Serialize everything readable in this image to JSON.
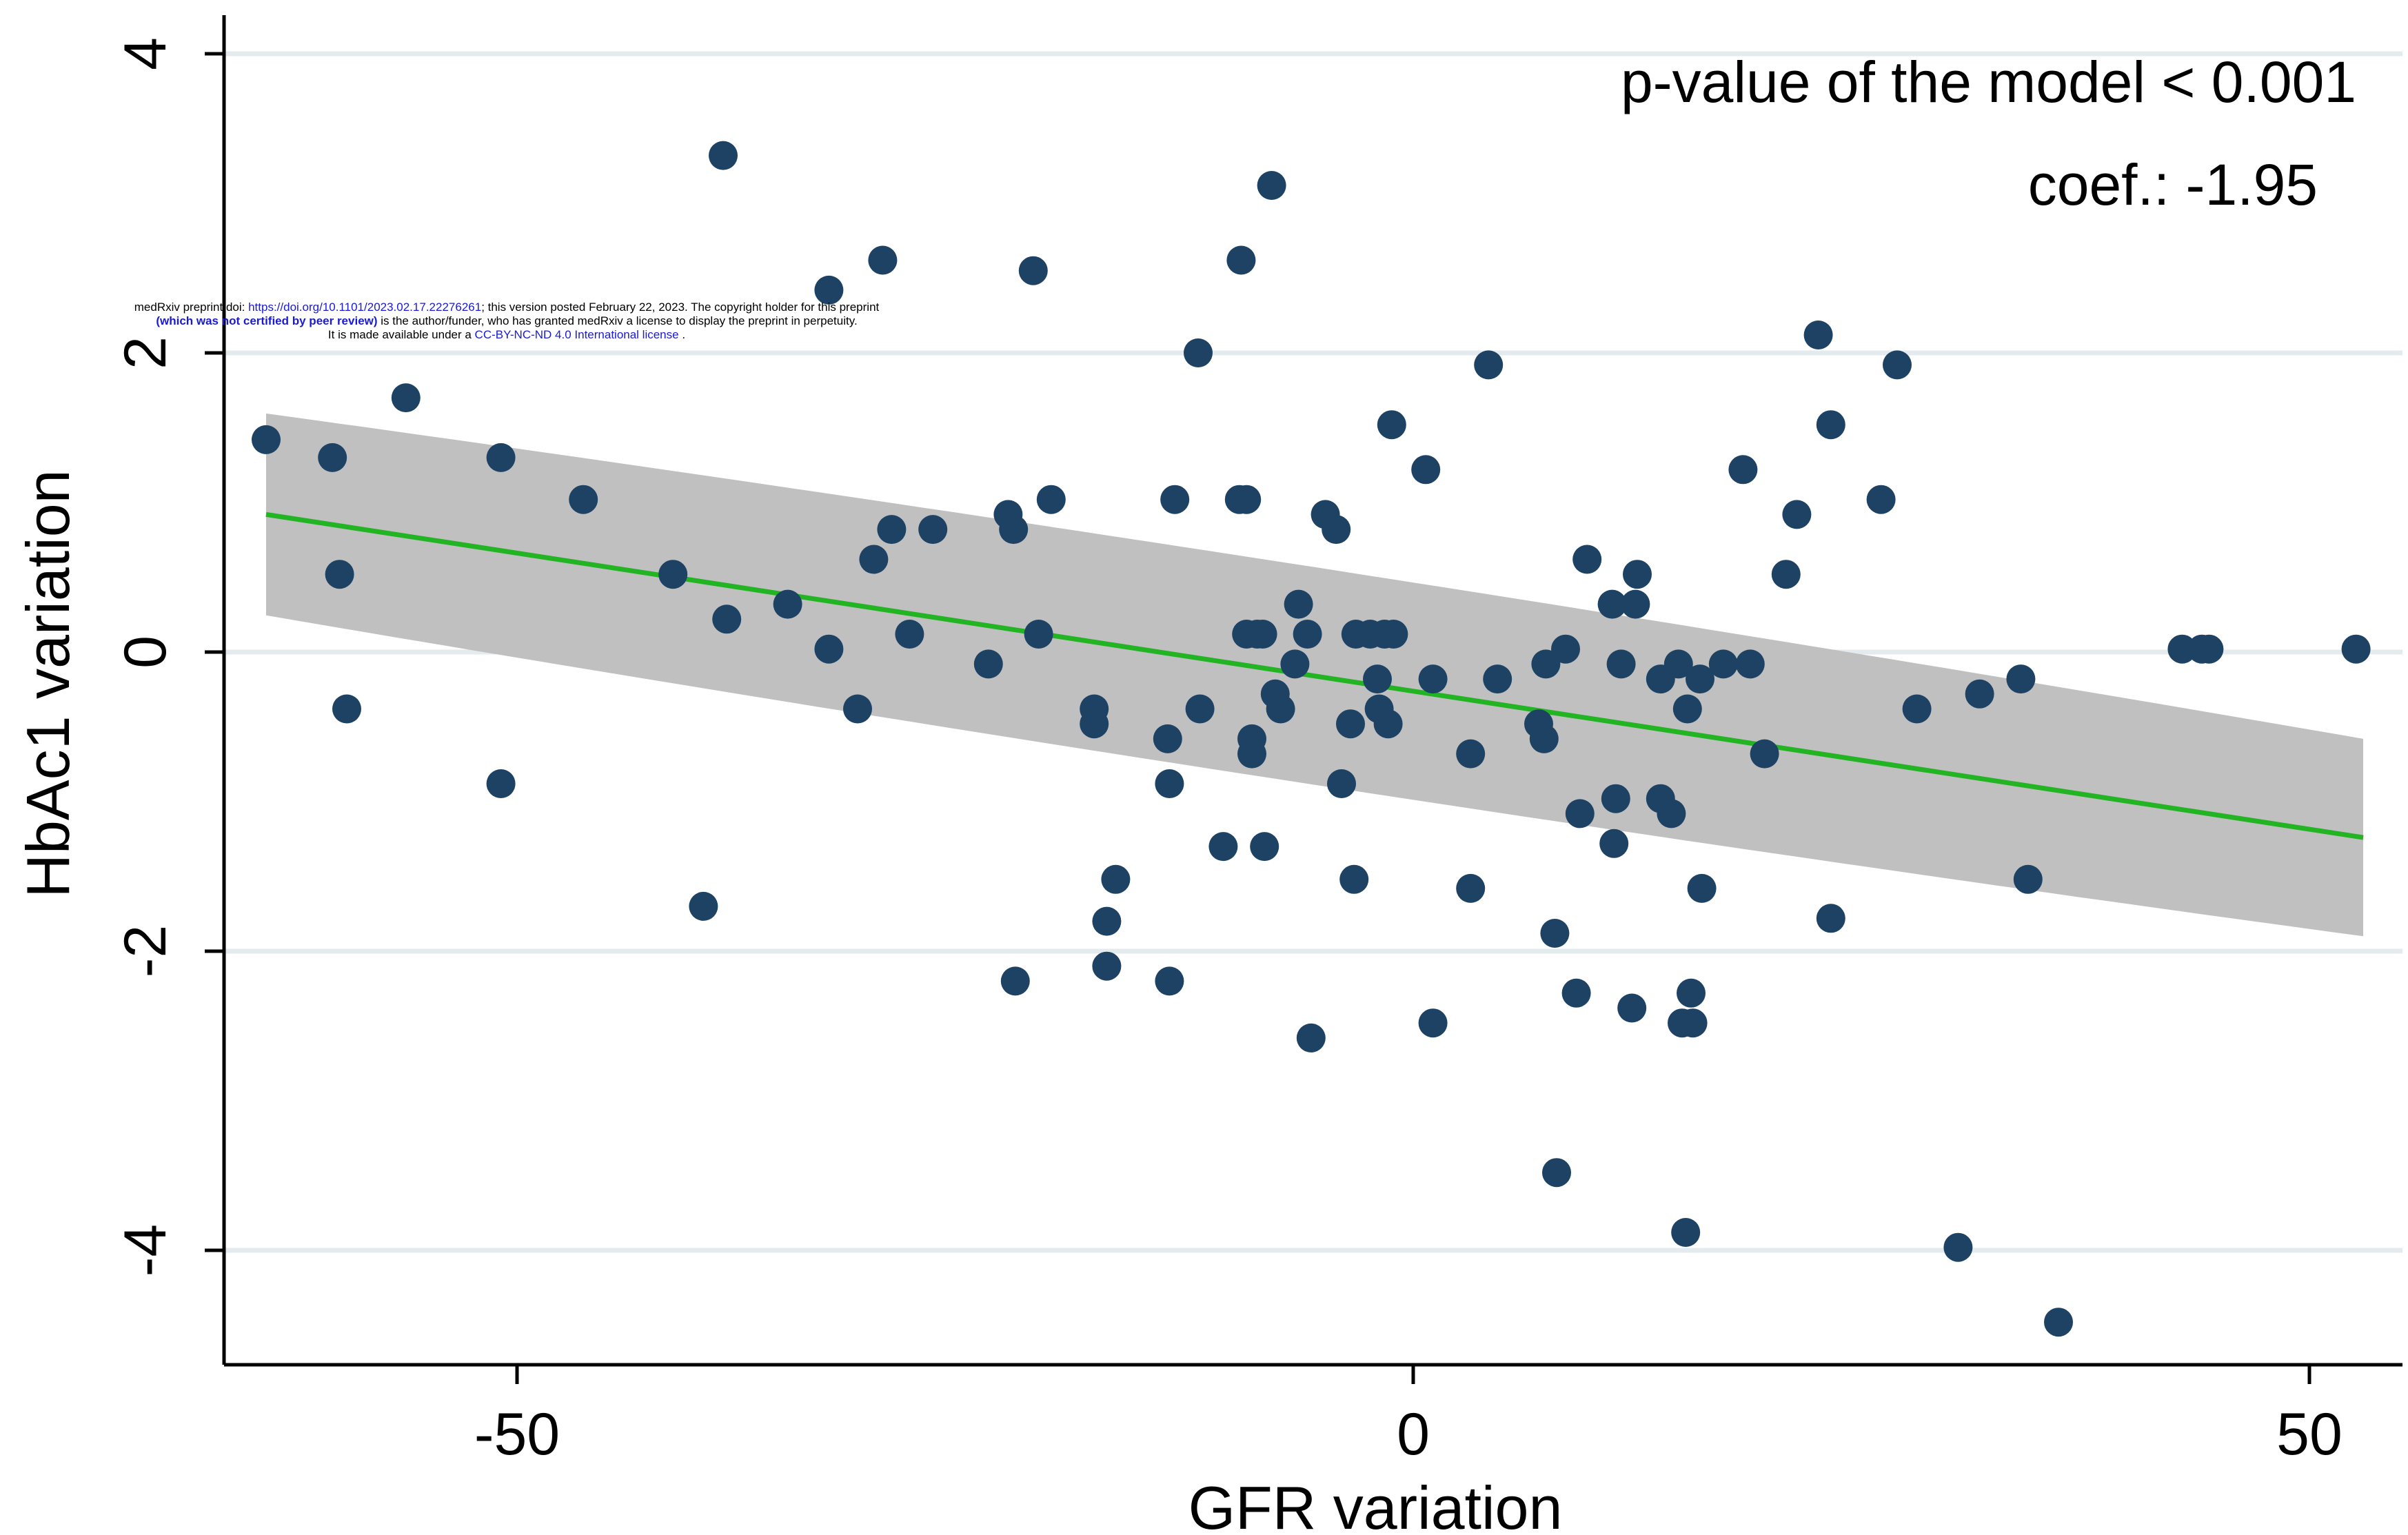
{
  "chart_data": {
    "type": "scatter",
    "xlabel": "GFR variation",
    "ylabel": "HbAc1 variation",
    "xlim": [
      -66.5,
      55
    ],
    "ylim": [
      -4.75,
      4.2
    ],
    "x_ticks": [
      -50,
      0,
      50
    ],
    "x_tick_labels": [
      "-50",
      "0",
      "50"
    ],
    "y_ticks": [
      -4,
      -2,
      0,
      2,
      4
    ],
    "y_tick_labels": [
      "-4",
      "-2",
      "0",
      "2",
      "4"
    ],
    "grid": true,
    "legend": "none",
    "annotations": [
      "p-value of the model < 0.001",
      "coef.: -1.95"
    ],
    "fit": {
      "x": [
        -64,
        53
      ],
      "y": [
        0.92,
        -1.24
      ],
      "ci_lower": [
        0.25,
        -1.9
      ],
      "ci_upper": [
        1.6,
        -0.58
      ],
      "ci_center_x": -9
    },
    "colors": {
      "points": "#1d4264",
      "fit_line": "#22b422",
      "ci_band": "#c0c0c0",
      "grid": "#e4ebee"
    },
    "points": [
      [
        -64,
        1.42
      ],
      [
        -60.3,
        1.3
      ],
      [
        -59.9,
        0.52
      ],
      [
        -59.5,
        -0.38
      ],
      [
        -56.2,
        1.7
      ],
      [
        -50.9,
        1.3
      ],
      [
        -50.9,
        -0.88
      ],
      [
        -46.3,
        1.02
      ],
      [
        -41.3,
        0.52
      ],
      [
        -39.6,
        -1.7
      ],
      [
        -38.5,
        3.32
      ],
      [
        -38.3,
        0.22
      ],
      [
        -34.9,
        0.32
      ],
      [
        -32.6,
        2.42
      ],
      [
        -32.6,
        0.02
      ],
      [
        -31,
        -0.38
      ],
      [
        -30.1,
        0.62
      ],
      [
        -29.6,
        2.62
      ],
      [
        -29.1,
        0.82
      ],
      [
        -28.1,
        0.12
      ],
      [
        -26.8,
        0.82
      ],
      [
        -23.7,
        -0.08
      ],
      [
        -22.6,
        0.92
      ],
      [
        -22.3,
        0.82
      ],
      [
        -22.2,
        -2.2
      ],
      [
        -21.2,
        2.55
      ],
      [
        -20.9,
        0.12
      ],
      [
        -20.2,
        1.02
      ],
      [
        -17.8,
        -0.38
      ],
      [
        -17.8,
        -0.48
      ],
      [
        -17.1,
        -1.8
      ],
      [
        -17.1,
        -2.1
      ],
      [
        -16.6,
        -1.52
      ],
      [
        -13.7,
        -0.58
      ],
      [
        -13.6,
        -2.2
      ],
      [
        -13.6,
        -0.88
      ],
      [
        -13.3,
        1.02
      ],
      [
        -12,
        2.0
      ],
      [
        -11.9,
        -0.38
      ],
      [
        -10.6,
        -1.3
      ],
      [
        -9.7,
        1.02
      ],
      [
        -9.6,
        2.62
      ],
      [
        -9.3,
        1.02
      ],
      [
        -9.3,
        0.12
      ],
      [
        -9.0,
        -0.58
      ],
      [
        -9.0,
        -0.68
      ],
      [
        -8.7,
        0.12
      ],
      [
        -8.4,
        0.12
      ],
      [
        -8.3,
        -1.3
      ],
      [
        -7.9,
        3.12
      ],
      [
        -7.7,
        -0.28
      ],
      [
        -7.4,
        -0.38
      ],
      [
        -6.6,
        -0.08
      ],
      [
        -6.4,
        0.32
      ],
      [
        -5.9,
        0.12
      ],
      [
        -5.7,
        -2.58
      ],
      [
        -4.9,
        0.92
      ],
      [
        -4.3,
        0.82
      ],
      [
        -4.0,
        -0.88
      ],
      [
        -3.5,
        -0.48
      ],
      [
        -3.3,
        -1.52
      ],
      [
        -3.2,
        0.12
      ],
      [
        -2.4,
        0.12
      ],
      [
        -2.0,
        -0.18
      ],
      [
        -1.9,
        -0.38
      ],
      [
        -1.6,
        0.12
      ],
      [
        -1.4,
        -0.48
      ],
      [
        -1.2,
        1.52
      ],
      [
        -1.1,
        0.12
      ],
      [
        0.7,
        1.22
      ],
      [
        1.1,
        -2.48
      ],
      [
        1.1,
        -0.18
      ],
      [
        3.2,
        -0.68
      ],
      [
        3.2,
        -1.58
      ],
      [
        4.2,
        1.92
      ],
      [
        4.7,
        -0.18
      ],
      [
        7.0,
        -0.48
      ],
      [
        7.3,
        -0.58
      ],
      [
        7.4,
        -0.08
      ],
      [
        7.9,
        -1.88
      ],
      [
        8.0,
        -3.48
      ],
      [
        8.5,
        0.02
      ],
      [
        9.1,
        -2.28
      ],
      [
        9.3,
        -1.08
      ],
      [
        9.7,
        0.62
      ],
      [
        11.1,
        0.32
      ],
      [
        11.2,
        -1.28
      ],
      [
        11.3,
        -0.98
      ],
      [
        11.6,
        -0.08
      ],
      [
        12.2,
        -2.38
      ],
      [
        12.4,
        0.32
      ],
      [
        12.5,
        0.52
      ],
      [
        13.8,
        -0.18
      ],
      [
        13.8,
        -0.98
      ],
      [
        14.4,
        -1.08
      ],
      [
        14.8,
        -0.08
      ],
      [
        15.0,
        -2.48
      ],
      [
        15.2,
        -3.88
      ],
      [
        15.3,
        -0.38
      ],
      [
        15.5,
        -2.28
      ],
      [
        15.6,
        -2.48
      ],
      [
        16.0,
        -0.18
      ],
      [
        16.1,
        -1.58
      ],
      [
        17.3,
        -0.08
      ],
      [
        18.4,
        1.22
      ],
      [
        18.8,
        -0.08
      ],
      [
        19.6,
        -0.68
      ],
      [
        20.8,
        0.52
      ],
      [
        21.4,
        0.92
      ],
      [
        22.6,
        2.12
      ],
      [
        23.3,
        1.52
      ],
      [
        23.3,
        -1.78
      ],
      [
        26.1,
        1.02
      ],
      [
        27.0,
        1.92
      ],
      [
        28.1,
        -0.38
      ],
      [
        30.4,
        -3.98
      ],
      [
        31.6,
        -0.28
      ],
      [
        33.9,
        -0.18
      ],
      [
        34.3,
        -1.52
      ],
      [
        36.0,
        -4.48
      ],
      [
        42.9,
        0.02
      ],
      [
        44.0,
        0.02
      ],
      [
        44.4,
        0.02
      ],
      [
        52.6,
        0.02
      ]
    ]
  },
  "preprint_notice": {
    "line1_prefix": "medRxiv preprint doi: ",
    "doi_link": "https://doi.org/10.1101/2023.02.17.22276261",
    "line1_suffix": "; this version posted February 22, 2023. The copyright holder for this preprint",
    "line2_bold": "(which was not certified by peer review)",
    "line2_suffix": " is the author/funder, who has granted medRxiv a license to display the preprint in perpetuity.",
    "line3_prefix": "It is made available under a ",
    "license_link": "CC-BY-NC-ND 4.0 International license",
    "line3_suffix": " ."
  }
}
